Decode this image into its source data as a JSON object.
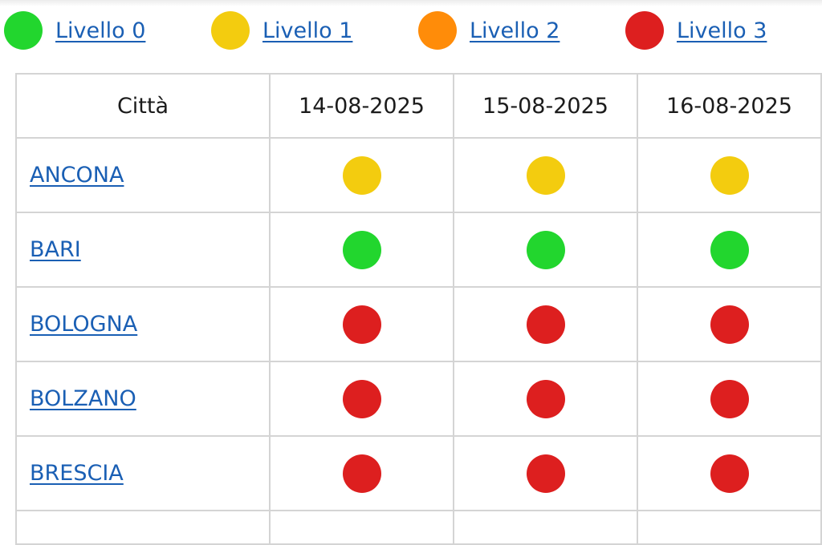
{
  "levels": [
    {
      "id": 0,
      "label": "Livello 0",
      "color": "#22d62e"
    },
    {
      "id": 1,
      "label": "Livello 1",
      "color": "#f3cc0f"
    },
    {
      "id": 2,
      "label": "Livello 2",
      "color": "#ff8c09"
    },
    {
      "id": 3,
      "label": "Livello 3",
      "color": "#dd1f1f"
    }
  ],
  "table": {
    "headers": [
      "Città",
      "14-08-2025",
      "15-08-2025",
      "16-08-2025"
    ],
    "rows": [
      {
        "city": "ANCONA",
        "levels": [
          1,
          1,
          1
        ]
      },
      {
        "city": "BARI",
        "levels": [
          0,
          0,
          0
        ]
      },
      {
        "city": "BOLOGNA",
        "levels": [
          3,
          3,
          3
        ]
      },
      {
        "city": "BOLZANO",
        "levels": [
          3,
          3,
          3
        ]
      },
      {
        "city": "BRESCIA",
        "levels": [
          3,
          3,
          3
        ]
      }
    ]
  }
}
